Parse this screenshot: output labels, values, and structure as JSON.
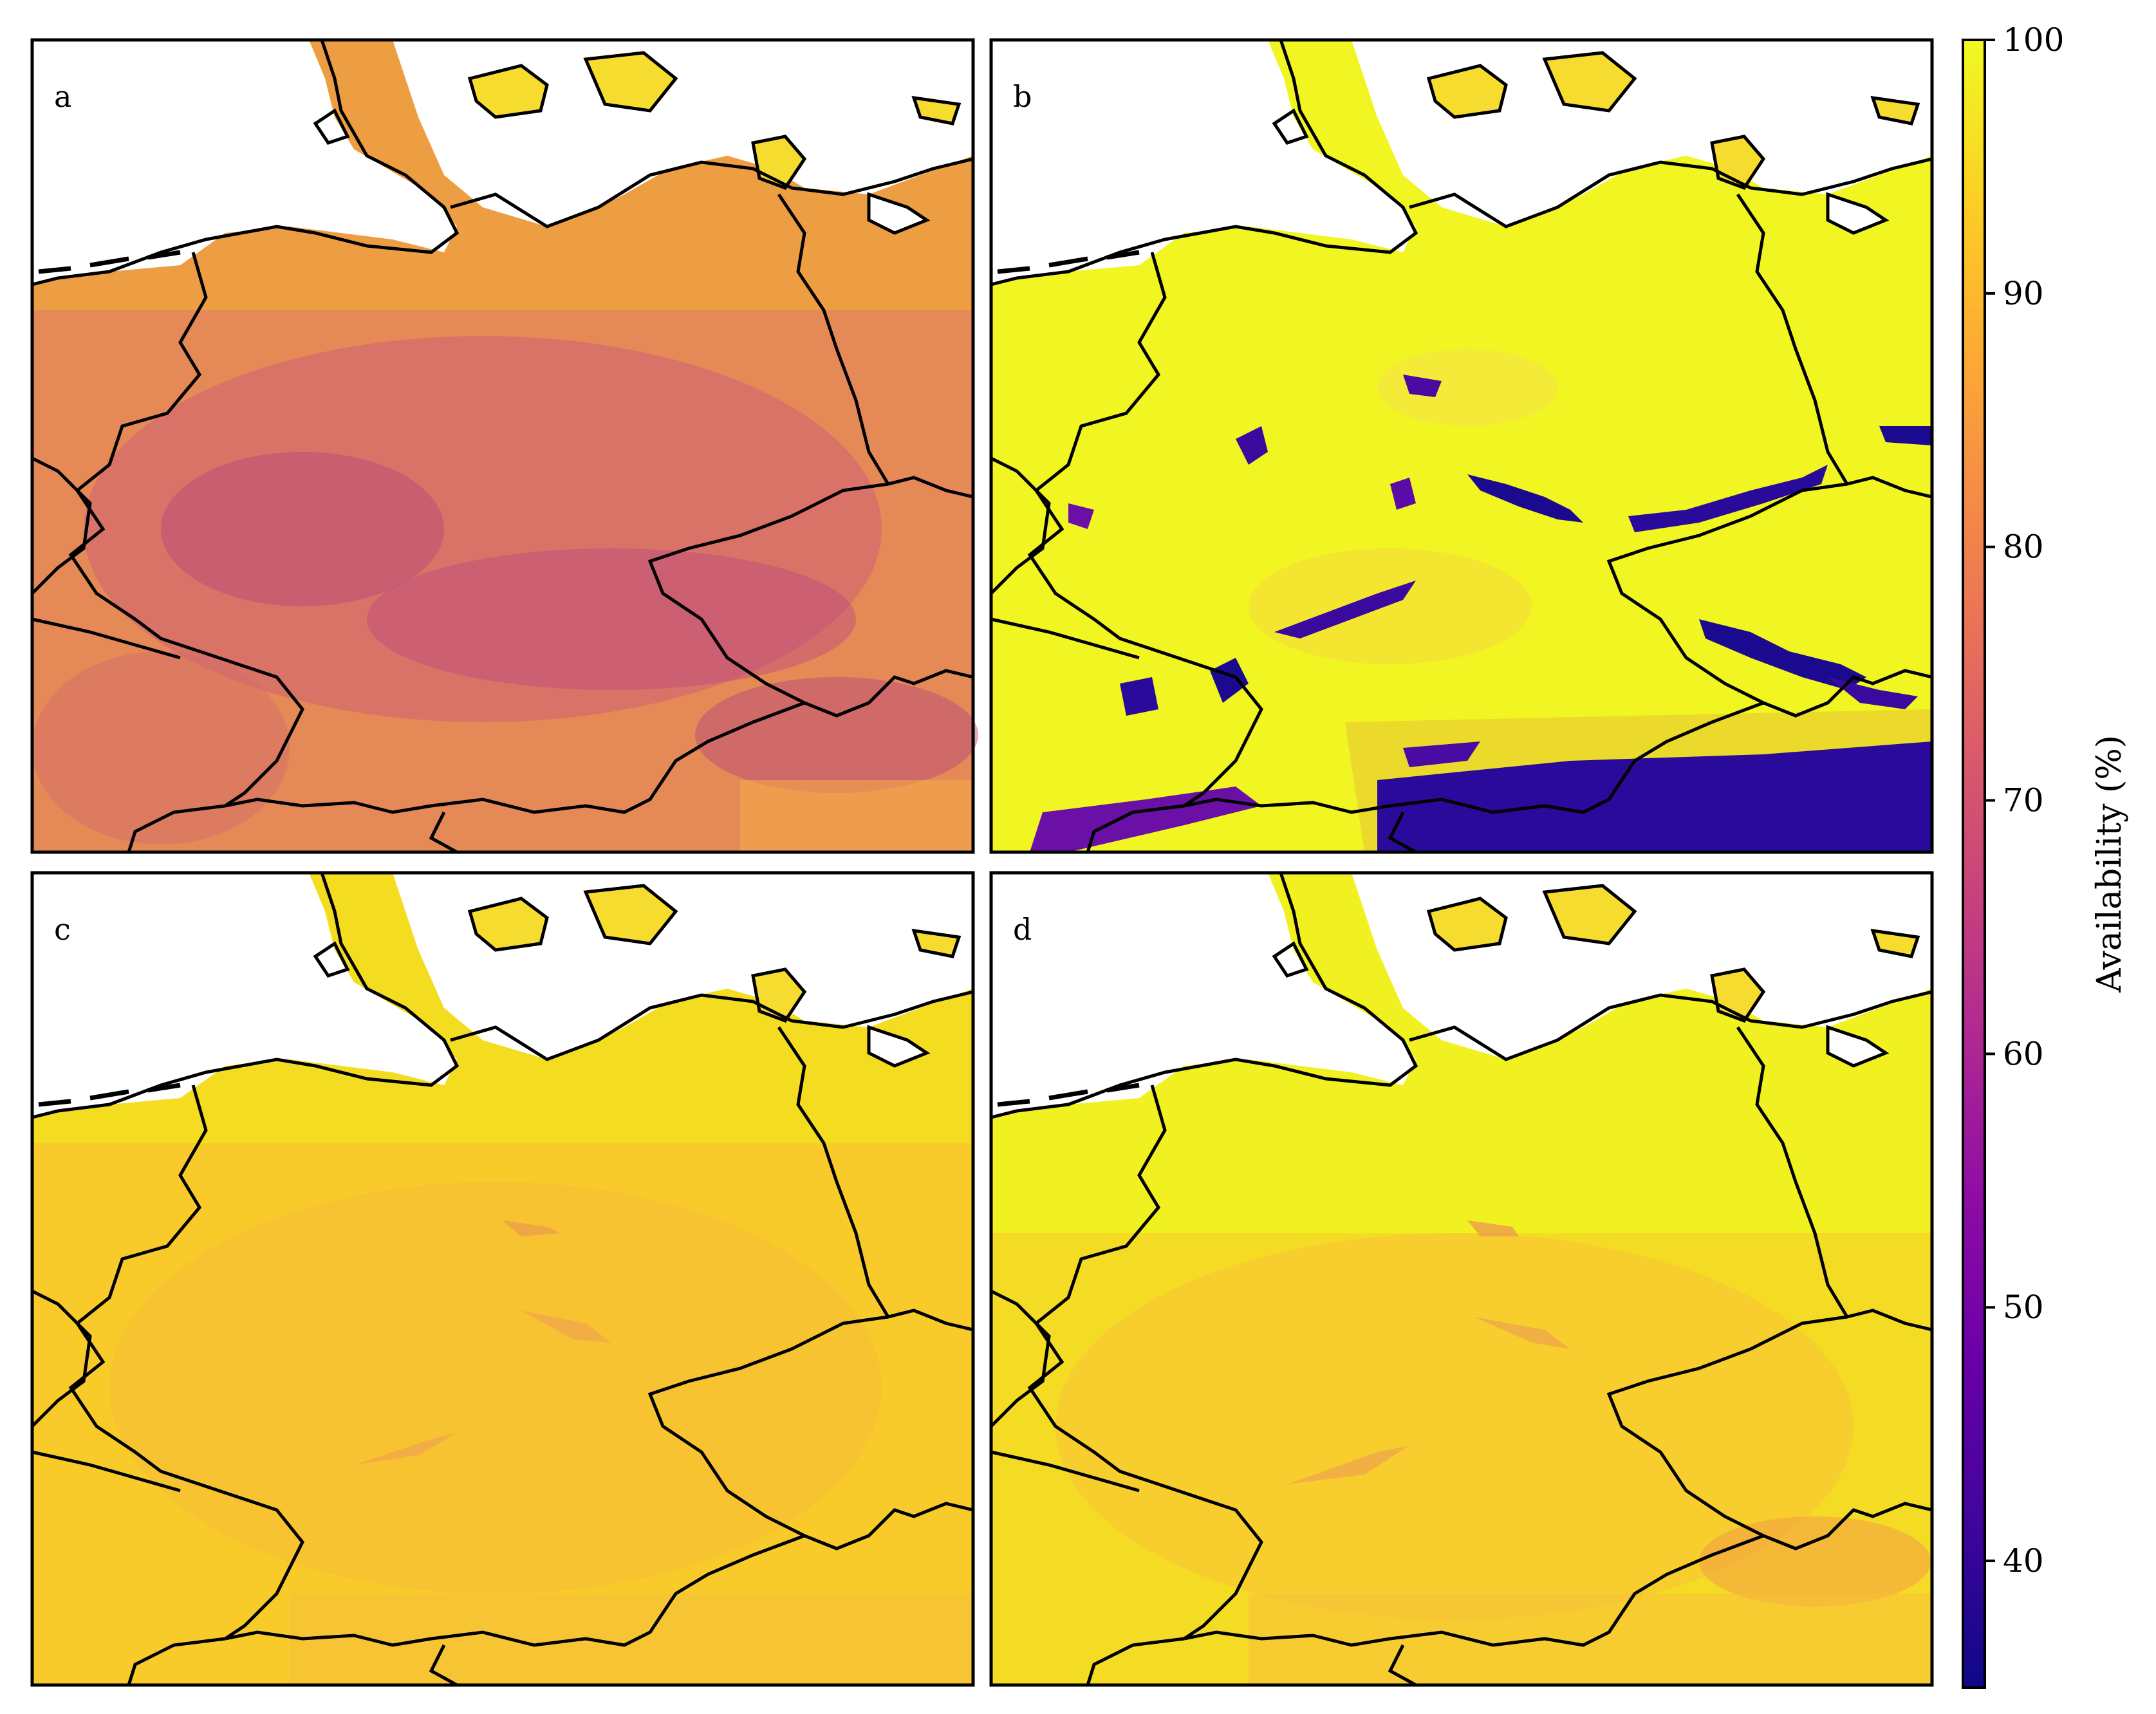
{
  "panels": [
    {
      "label": "a",
      "mean_availability": 82,
      "variability": "low-contrast"
    },
    {
      "label": "b",
      "mean_availability": 97,
      "variability": "high-contrast"
    },
    {
      "label": "c",
      "mean_availability": 93,
      "variability": "low-contrast"
    },
    {
      "label": "d",
      "mean_availability": 94,
      "variability": "low-contrast"
    }
  ],
  "colorbar": {
    "label": "Availability (%)",
    "colormap": "plasma",
    "range": [
      35,
      100
    ],
    "ticks": [
      "100",
      "90",
      "80",
      "70",
      "60",
      "50",
      "40"
    ]
  },
  "colors": {
    "sea": "#ffffff",
    "border": "#000000",
    "frame": "#000000"
  }
}
